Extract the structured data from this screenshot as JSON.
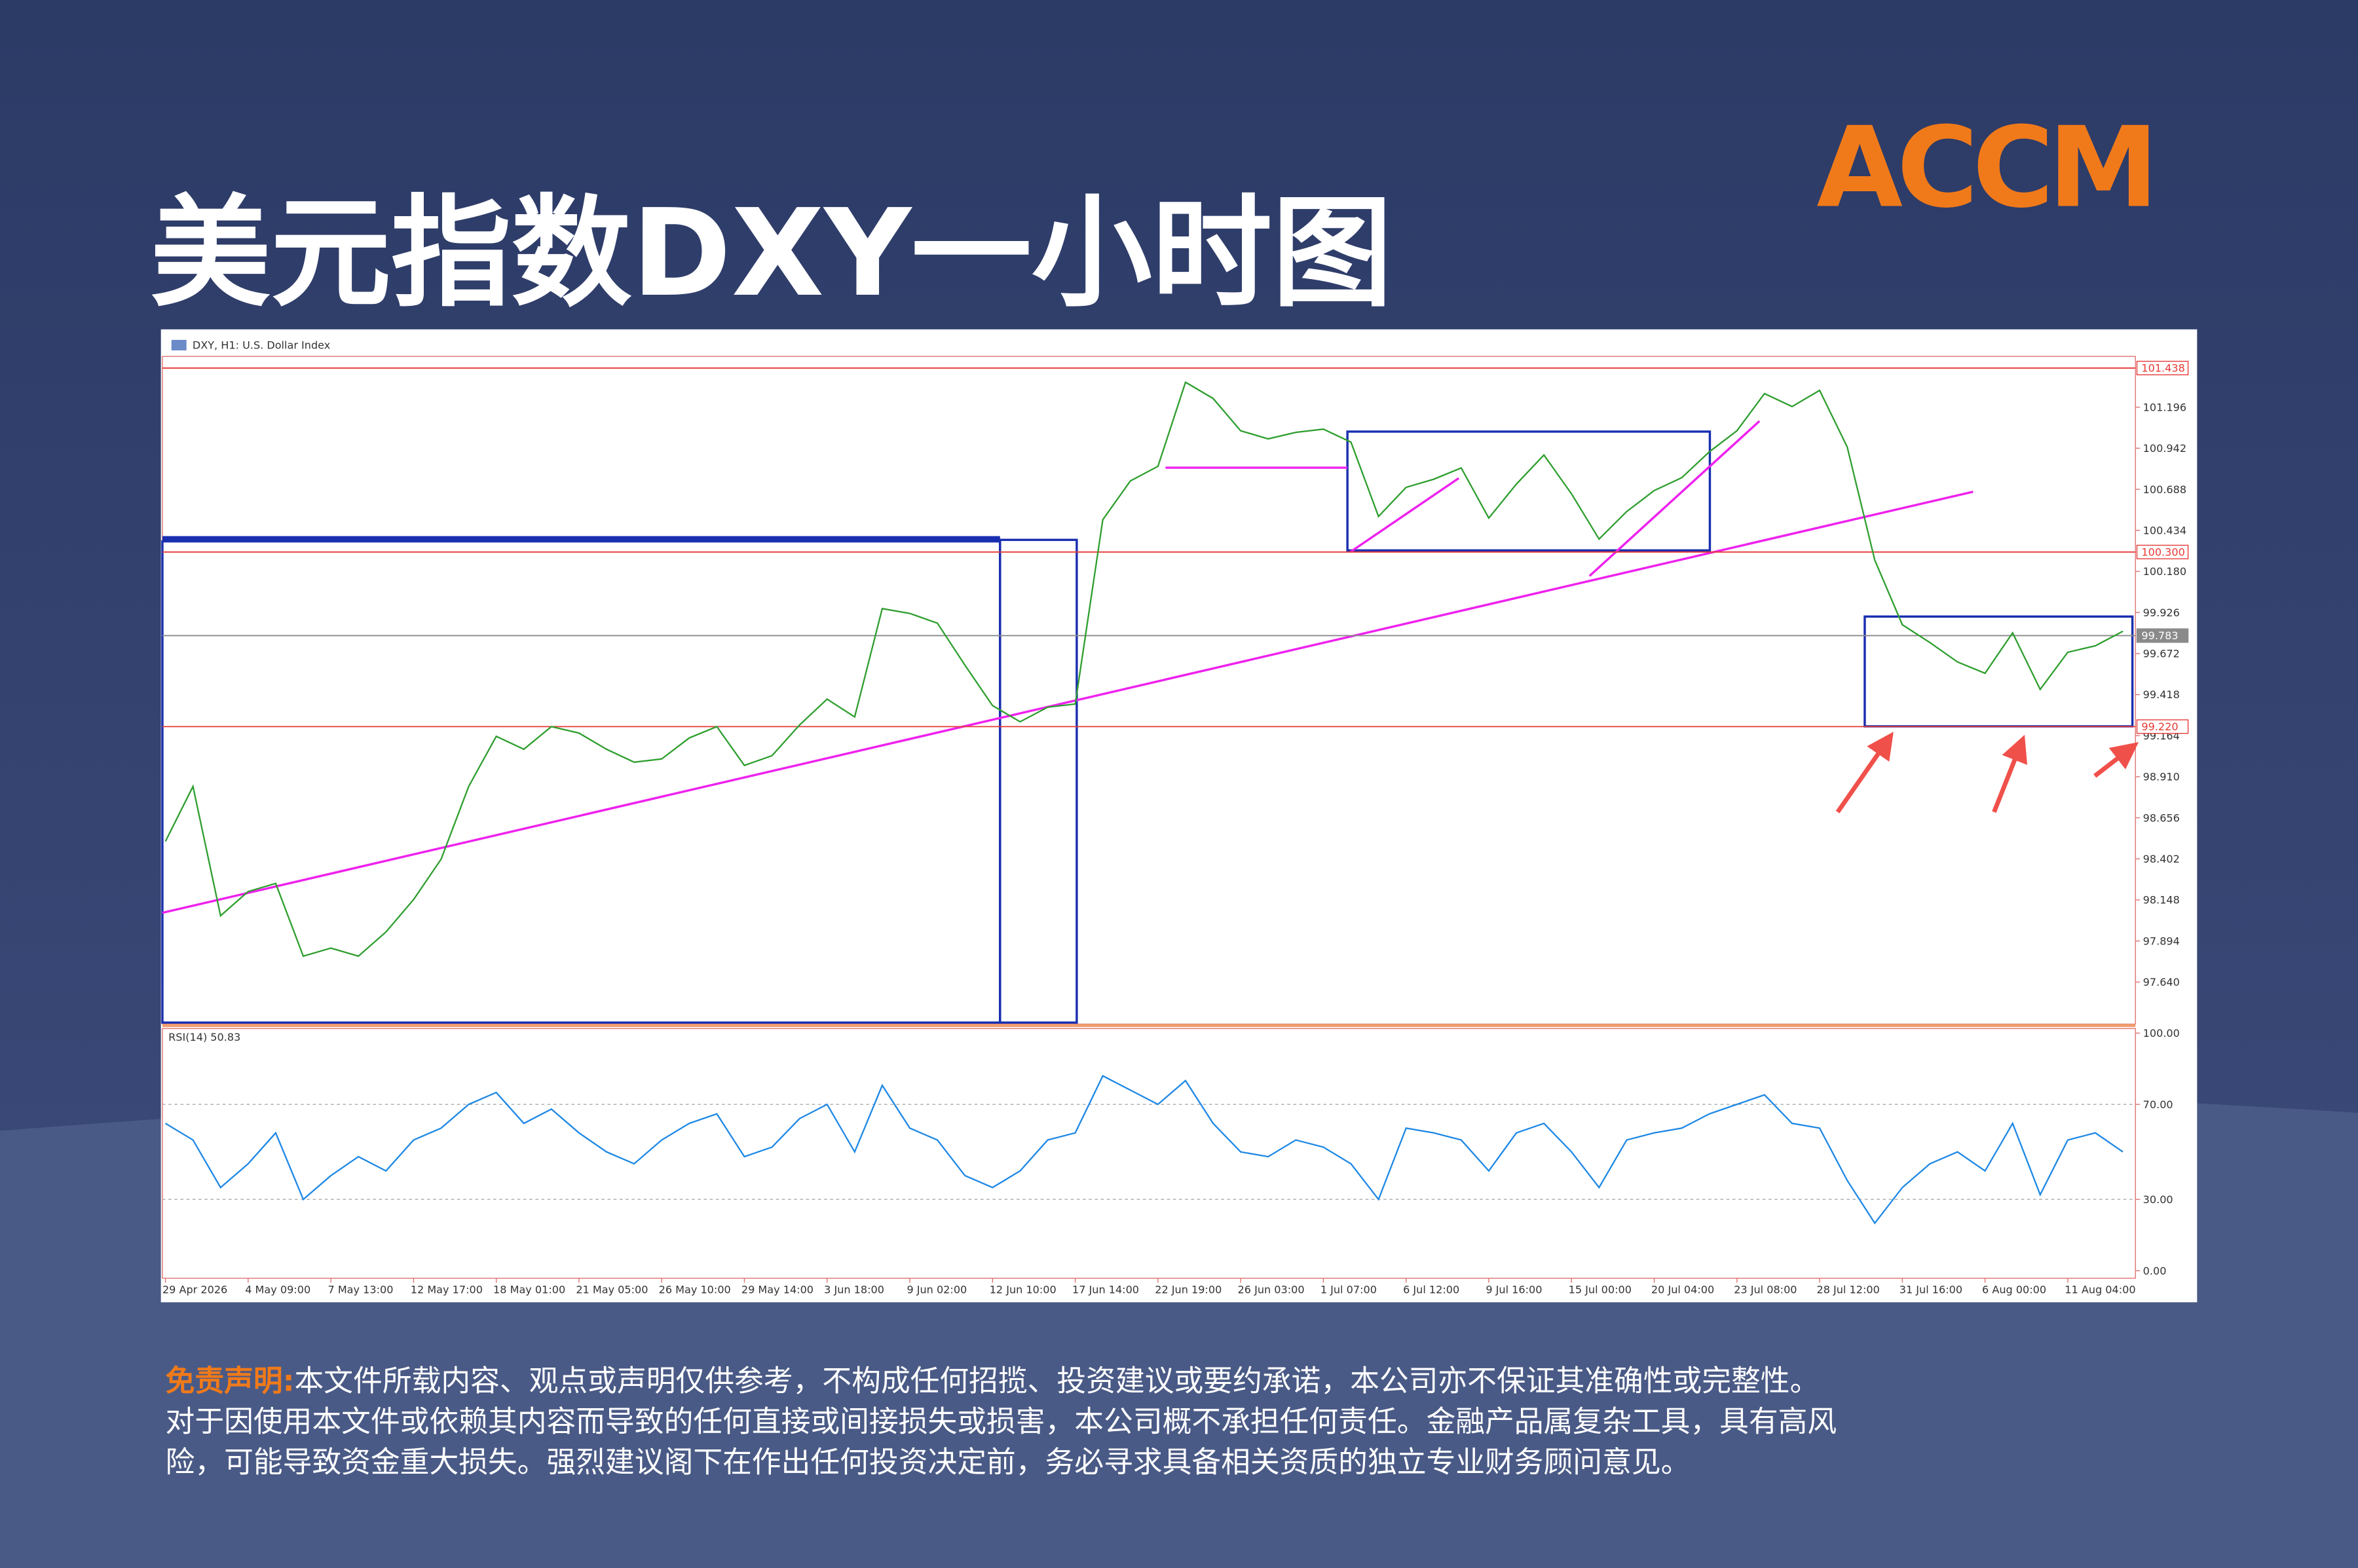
{
  "title": "美元指数DXY一小时图",
  "logo": "ACCM",
  "chart_data": [
    {
      "type": "line",
      "title": "DXY, H1: U.S. Dollar Index",
      "color": "#2e9e2e",
      "categories": [
        "29 Apr 2026",
        null,
        null,
        "4 May 09:00",
        null,
        null,
        "7 May 13:00",
        null,
        null,
        "12 May 17:00",
        null,
        null,
        "18 May 01:00",
        null,
        null,
        "21 May 05:00",
        null,
        null,
        "26 May 10:00",
        null,
        null,
        "29 May 14:00",
        null,
        null,
        "3 Jun 18:00",
        null,
        null,
        "9 Jun 02:00",
        null,
        null,
        "12 Jun 10:00",
        null,
        null,
        "17 Jun 14:00",
        null,
        null,
        "22 Jun 19:00",
        null,
        null,
        "26 Jun 03:00",
        null,
        null,
        "1 Jul 07:00",
        null,
        null,
        "6 Jul 12:00",
        null,
        null,
        "9 Jul 16:00",
        null,
        null,
        "15 Jul 00:00",
        null,
        null,
        "20 Jul 04:00",
        null,
        null,
        "23 Jul 08:00",
        null,
        null,
        "28 Jul 12:00",
        null,
        null,
        "31 Jul 16:00",
        null,
        null,
        "6 Aug 00:00",
        null,
        null,
        "11 Aug 04:00",
        null,
        null
      ],
      "values": [
        98.51,
        98.85,
        98.05,
        98.2,
        98.25,
        97.8,
        97.85,
        97.8,
        97.95,
        98.15,
        98.4,
        98.85,
        99.16,
        99.08,
        99.22,
        99.18,
        99.08,
        99.0,
        99.02,
        99.15,
        99.22,
        98.98,
        99.04,
        99.23,
        99.39,
        99.28,
        99.95,
        99.92,
        99.86,
        99.6,
        99.35,
        99.25,
        99.34,
        99.36,
        100.5,
        100.74,
        100.83,
        101.35,
        101.25,
        101.05,
        101.0,
        101.04,
        101.06,
        100.98,
        100.52,
        100.7,
        100.75,
        100.82,
        100.51,
        100.72,
        100.9,
        100.66,
        100.38,
        100.55,
        100.68,
        100.76,
        100.92,
        101.05,
        101.28,
        101.2,
        101.3,
        100.95,
        100.25,
        99.85,
        99.74,
        99.62,
        99.55,
        99.8,
        99.45,
        99.68,
        99.72,
        99.81
      ],
      "ylim": [
        97.38,
        101.51
      ],
      "yticks": [
        101.196,
        100.942,
        100.688,
        100.434,
        {
          "value": 100.18,
          "label": "100.180"
        },
        99.926,
        99.672,
        99.418,
        99.164,
        {
          "value": 98.91,
          "label": "98.910"
        },
        98.656,
        98.402,
        98.148,
        97.894,
        {
          "value": 97.64,
          "label": "97.640"
        }
      ],
      "levels": [
        {
          "value": 101.438,
          "label": "101.438",
          "color": "#e53935"
        },
        {
          "value": 100.3,
          "label": "100.300",
          "color": "#e53935"
        },
        {
          "value": 99.783,
          "label": "99.783",
          "color": "#8a8a8a"
        },
        {
          "value": 99.22,
          "label": "99.220",
          "color": "#e53935"
        }
      ]
    },
    {
      "type": "line",
      "title": "RSI(14) 50.83",
      "color": "#1e88e5",
      "values": [
        62,
        55,
        35,
        45,
        58,
        30,
        40,
        48,
        42,
        55,
        60,
        70,
        75,
        62,
        68,
        58,
        50,
        45,
        55,
        62,
        66,
        48,
        52,
        64,
        70,
        50,
        78,
        60,
        55,
        40,
        35,
        42,
        55,
        58,
        82,
        76,
        70,
        80,
        62,
        50,
        48,
        55,
        52,
        45,
        30,
        60,
        58,
        55,
        42,
        58,
        62,
        50,
        35,
        55,
        58,
        60,
        66,
        70,
        74,
        62,
        60,
        38,
        20,
        35,
        45,
        50,
        42,
        62,
        32,
        55,
        58,
        50
      ],
      "ylim": [
        0,
        100
      ],
      "yticks": [
        {
          "value": 100,
          "label": "100.00"
        },
        {
          "value": 70,
          "label": "70.00"
        },
        {
          "value": 30,
          "label": "30.00"
        },
        {
          "value": 0,
          "label": "0.00"
        }
      ],
      "dashed_levels": [
        70,
        30
      ]
    }
  ],
  "disclaimer": {
    "label": "免责声明:",
    "lines": [
      "本文件所载内容、观点或声明仅供参考，不构成任何招揽、投资建议或要约承诺，本公司亦不保证其准确性或完整性。",
      "对于因使用本文件或依赖其内容而导致的任何直接或间接损失或损害，本公司概不承担任何责任。金融产品属复杂工具，具有高风",
      "险，可能导致资金重大损失。强烈建议阁下在作出任何投资决定前，务必寻求具备相关资质的独立专业财务顾问意见。"
    ]
  }
}
